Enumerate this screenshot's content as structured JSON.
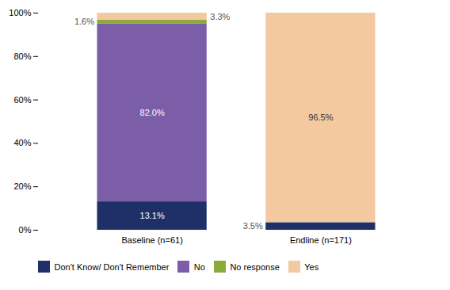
{
  "chart_data": {
    "type": "bar",
    "stacked": true,
    "categories": [
      "Baseline (n=61)",
      "Endline (n=171)"
    ],
    "series": [
      {
        "name": "Don't Know/ Don't Remember",
        "color": "#1f3068",
        "values": [
          0.131,
          0.035
        ],
        "value_labels": [
          "13.1%",
          "3.5%"
        ]
      },
      {
        "name": "No",
        "color": "#7b5ea7",
        "values": [
          0.82,
          0.0
        ],
        "value_labels": [
          "82.0%",
          null
        ]
      },
      {
        "name": "No response",
        "color": "#8aab3a",
        "values": [
          0.016,
          0.0
        ],
        "value_labels": [
          "1.6%",
          null
        ]
      },
      {
        "name": "Yes",
        "color": "#f5c9a0",
        "values": [
          0.033,
          0.965
        ],
        "value_labels": [
          "3.3%",
          "96.5%"
        ]
      }
    ],
    "ylim": [
      0,
      1.0
    ],
    "yticks": [
      {
        "value": 0,
        "label": "0%"
      },
      {
        "value": 0.2,
        "label": "20%"
      },
      {
        "value": 0.4,
        "label": "40%"
      },
      {
        "value": 0.6,
        "label": "60%"
      },
      {
        "value": 0.8,
        "label": "80%"
      },
      {
        "value": 1.0,
        "label": "100%"
      }
    ],
    "grid": false,
    "legend": "bottom",
    "data_labels": true
  }
}
